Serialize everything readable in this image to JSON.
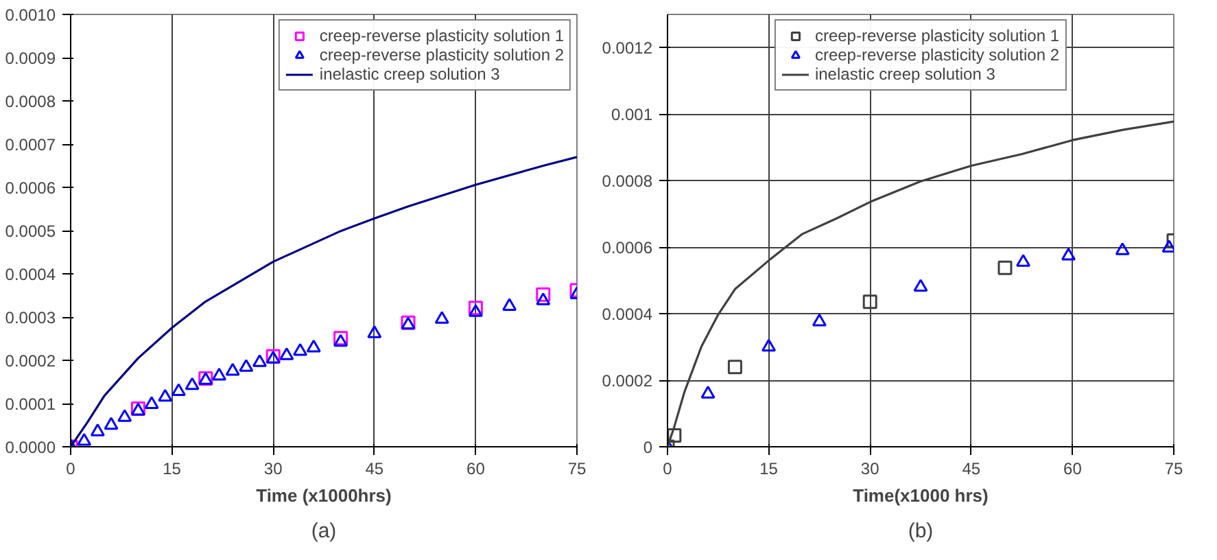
{
  "chart_data": [
    {
      "type": "scatter",
      "xlabel": "Time (x1000hrs)",
      "annotations": [
        "(a)"
      ],
      "xlim": [
        0,
        75
      ],
      "ylim": [
        0,
        0.001
      ],
      "xticks": [
        0,
        15,
        30,
        45,
        60,
        75
      ],
      "yticks": [
        {
          "value": 0,
          "label": "0.0000"
        },
        {
          "value": 0.0001,
          "label": "0.0001"
        },
        {
          "value": 0.0002,
          "label": "0.0002"
        },
        {
          "value": 0.0003,
          "label": "0.0003"
        },
        {
          "value": 0.0004,
          "label": "0.0004"
        },
        {
          "value": 0.0005,
          "label": "0.0005"
        },
        {
          "value": 0.0006,
          "label": "0.0006"
        },
        {
          "value": 0.0007,
          "label": "0.0007"
        },
        {
          "value": 0.0008,
          "label": "0.0008"
        },
        {
          "value": 0.0009,
          "label": "0.0009"
        },
        {
          "value": 0.001,
          "label": "0.0010"
        }
      ],
      "grid": "x",
      "legend": "top right",
      "series": [
        {
          "name": "creep-reverse plasticity solution 1",
          "color": "#ff00ff",
          "marker": "square",
          "x": [
            0,
            10,
            20,
            30,
            40,
            50,
            60,
            70,
            75
          ],
          "values": [
            0,
            8.8e-05,
            0.000158,
            0.000209,
            0.000251,
            0.000287,
            0.000321,
            0.000352,
            0.000362
          ]
        },
        {
          "name": "creep-reverse plasticity solution 2",
          "color": "#0000ff",
          "marker": "triangle",
          "x": [
            0,
            2,
            4,
            6,
            8,
            10,
            12,
            14,
            16,
            18,
            20,
            22,
            24,
            26,
            28,
            30,
            32,
            34,
            36,
            40,
            45,
            50,
            55,
            60,
            65,
            70,
            75
          ],
          "values": [
            0,
            1.3e-05,
            3.5e-05,
            5e-05,
            6.8e-05,
            8.3e-05,
            9.8e-05,
            0.000115,
            0.000128,
            0.000142,
            0.000154,
            0.000164,
            0.000175,
            0.000184,
            0.000195,
            0.000203,
            0.000211,
            0.000221,
            0.000229,
            0.000242,
            0.000262,
            0.000282,
            0.000295,
            0.000311,
            0.000325,
            0.000338,
            0.000352
          ]
        },
        {
          "name": "inelastic creep solution 3",
          "type": "line",
          "color": "#000080",
          "marker": "none",
          "line_style": "solid",
          "x": [
            0,
            2.5,
            5,
            10,
            15,
            20,
            30,
            40,
            45,
            50,
            60,
            70,
            75
          ],
          "values": [
            0,
            5.7e-05,
            0.000118,
            0.000205,
            0.000275,
            0.000336,
            0.000428,
            0.000499,
            0.000528,
            0.000556,
            0.000606,
            0.00065,
            0.00067
          ]
        }
      ]
    },
    {
      "type": "scatter",
      "xlabel": "Time(x1000 hrs)",
      "annotations": [
        "(b)"
      ],
      "xlim": [
        0,
        75
      ],
      "ylim": [
        0,
        0.0013
      ],
      "xticks": [
        0,
        15,
        30,
        45,
        60,
        75
      ],
      "yticks": [
        0,
        0.0002,
        0.0004,
        0.0006,
        0.0008,
        0.001,
        0.0012
      ],
      "grid": true,
      "legend": "top",
      "series": [
        {
          "name": "creep-reverse plasticity solution 1",
          "color": "#404040",
          "marker": "square",
          "x": [
            0,
            1,
            10,
            30,
            50,
            75
          ],
          "values": [
            0,
            3.4e-05,
            0.00024,
            0.000436,
            0.000538,
            0.00062
          ]
        },
        {
          "name": "creep-reverse plasticity solution 2",
          "color": "#0000ff",
          "marker": "triangle",
          "x": [
            0,
            6,
            15,
            22.5,
            37.5,
            52.7,
            59.4,
            67.4,
            74.3
          ],
          "values": [
            0,
            0.000159,
            0.0003,
            0.000376,
            0.00048,
            0.000555,
            0.000574,
            0.00059,
            0.000598
          ]
        },
        {
          "name": "inelastic creep solution 3",
          "type": "line",
          "color": "#404040",
          "marker": "none",
          "line_style": "solid",
          "x": [
            0,
            1,
            2.5,
            5,
            7.5,
            10,
            15,
            20,
            25,
            30,
            37.5,
            45,
            52.5,
            60,
            67.5,
            75
          ],
          "values": [
            0,
            6e-05,
            0.000164,
            0.0003,
            0.000397,
            0.000474,
            0.00056,
            0.00064,
            0.000686,
            0.000736,
            0.000798,
            0.000845,
            0.00088,
            0.000922,
            0.000953,
            0.000978
          ]
        }
      ]
    }
  ]
}
